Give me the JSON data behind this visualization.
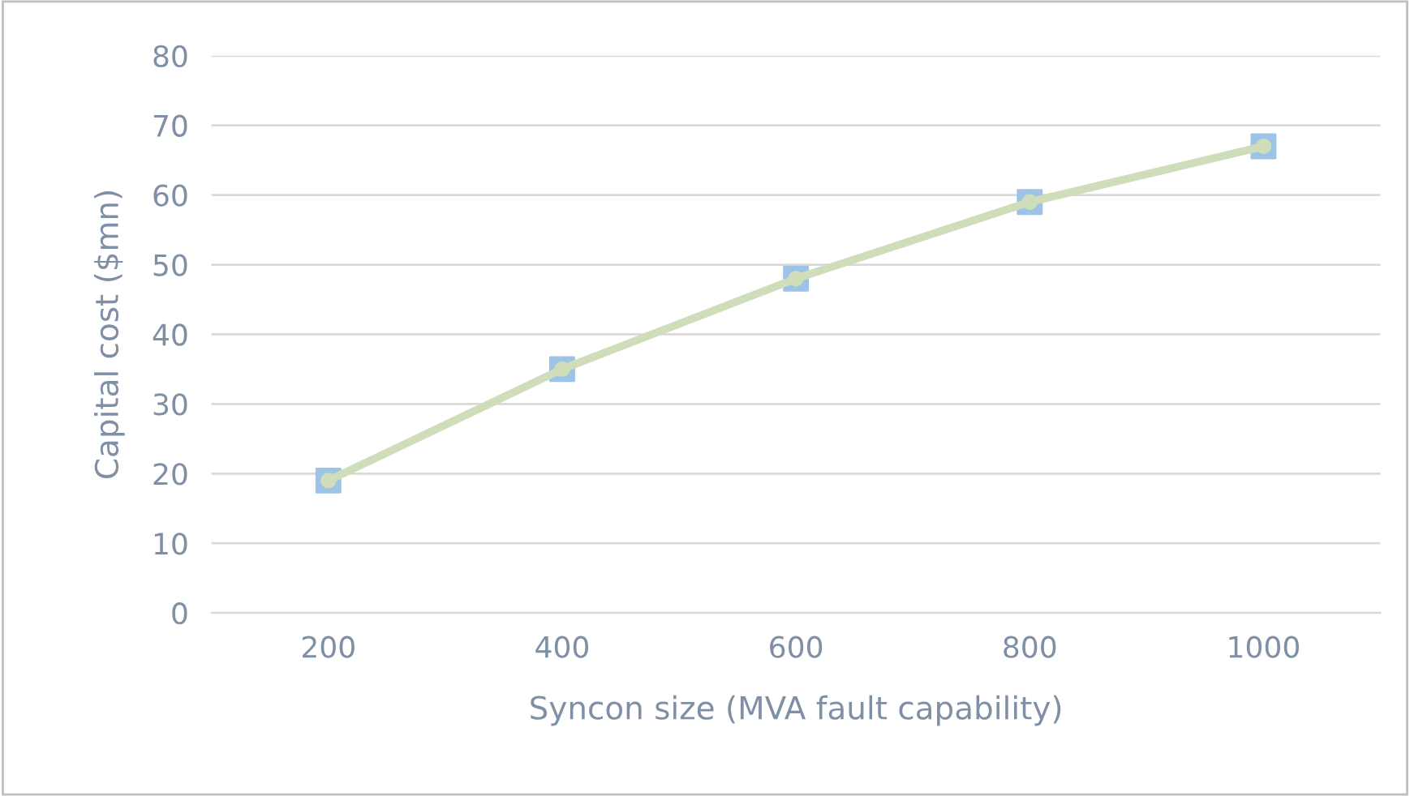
{
  "chart_data": {
    "type": "line",
    "xlabel": "Syncon size (MVA fault capability)",
    "ylabel": "Capital cost ($mn)",
    "categories": [
      "200",
      "400",
      "600",
      "800",
      "1000"
    ],
    "series": [
      {
        "type": "scatter",
        "marker": "square",
        "color": "#9dc3e6",
        "values": [
          19,
          35,
          48,
          59,
          67
        ]
      },
      {
        "marker": "circle",
        "color": "#d0ddbb",
        "values": [
          19,
          35,
          48,
          59,
          67
        ]
      }
    ],
    "ylim": [
      0,
      80
    ],
    "yticks": [
      0,
      10,
      20,
      30,
      40,
      50,
      60,
      70,
      80
    ],
    "grid": "y",
    "legend": false
  }
}
